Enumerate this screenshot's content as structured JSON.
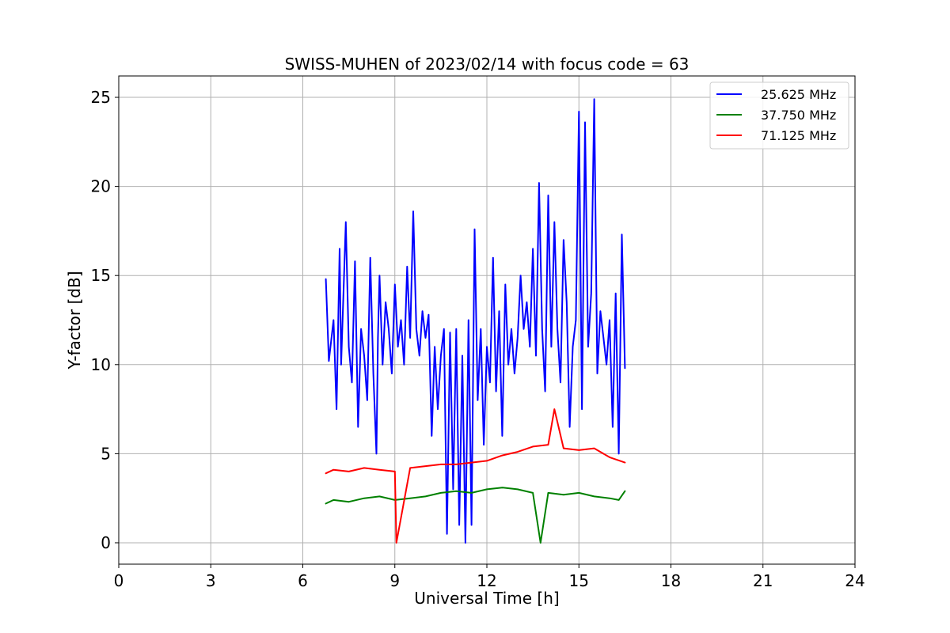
{
  "chart_data": {
    "type": "line",
    "title": "SWISS-MUHEN of 2023/02/14 with focus code = 63",
    "xlabel": "Universal Time [h]",
    "ylabel": "Y-factor [dB]",
    "xlim": [
      0,
      24
    ],
    "ylim": [
      -1.2,
      26.2
    ],
    "xticks": [
      0,
      3,
      6,
      9,
      12,
      15,
      18,
      21,
      24
    ],
    "yticks": [
      0,
      5,
      10,
      15,
      20,
      25
    ],
    "grid": true,
    "legend_position": "top-right",
    "series": [
      {
        "name": "25.625 MHz",
        "color": "#0000ff",
        "x": [
          6.75,
          6.85,
          7.0,
          7.1,
          7.2,
          7.25,
          7.4,
          7.5,
          7.6,
          7.7,
          7.8,
          7.9,
          8.0,
          8.1,
          8.2,
          8.3,
          8.4,
          8.45,
          8.5,
          8.6,
          8.7,
          8.8,
          8.9,
          9.0,
          9.1,
          9.2,
          9.3,
          9.4,
          9.5,
          9.6,
          9.7,
          9.8,
          9.9,
          10.0,
          10.1,
          10.2,
          10.3,
          10.4,
          10.5,
          10.6,
          10.7,
          10.8,
          10.9,
          11.0,
          11.1,
          11.2,
          11.3,
          11.4,
          11.5,
          11.6,
          11.7,
          11.8,
          11.9,
          12.0,
          12.1,
          12.2,
          12.3,
          12.4,
          12.5,
          12.6,
          12.7,
          12.8,
          12.9,
          13.0,
          13.1,
          13.2,
          13.3,
          13.4,
          13.5,
          13.6,
          13.7,
          13.8,
          13.9,
          14.0,
          14.1,
          14.2,
          14.3,
          14.4,
          14.5,
          14.6,
          14.7,
          14.8,
          14.9,
          15.0,
          15.1,
          15.2,
          15.3,
          15.4,
          15.5,
          15.6,
          15.7,
          15.8,
          15.9,
          16.0,
          16.1,
          16.2,
          16.3,
          16.4,
          16.5
        ],
        "values": [
          14.8,
          10.2,
          12.5,
          7.5,
          16.5,
          10.0,
          18.0,
          11.0,
          9.0,
          15.8,
          6.5,
          12.0,
          10.5,
          8.0,
          16.0,
          9.5,
          5.0,
          11.5,
          15.0,
          10.0,
          13.5,
          12.0,
          9.5,
          14.5,
          11.0,
          12.5,
          10.0,
          15.5,
          11.5,
          18.6,
          12.0,
          10.5,
          13.0,
          11.5,
          12.8,
          6.0,
          11.0,
          7.5,
          10.5,
          12.0,
          0.5,
          11.8,
          3.0,
          12.0,
          1.0,
          10.5,
          0.0,
          12.5,
          1.0,
          17.6,
          8.0,
          12.0,
          5.5,
          11.0,
          9.0,
          16.0,
          8.5,
          13.0,
          6.0,
          14.5,
          10.0,
          12.0,
          9.5,
          11.5,
          15.0,
          12.0,
          13.5,
          11.0,
          16.5,
          10.5,
          20.2,
          12.0,
          8.5,
          19.5,
          11.0,
          18.0,
          12.0,
          9.0,
          17.0,
          13.5,
          6.5,
          11.0,
          12.5,
          24.2,
          7.5,
          23.6,
          11.0,
          14.0,
          24.9,
          9.5,
          13.0,
          11.5,
          10.0,
          12.5,
          6.5,
          14.0,
          5.0,
          17.3,
          9.8
        ]
      },
      {
        "name": "37.750 MHz",
        "color": "#008000",
        "x": [
          6.75,
          7.0,
          7.5,
          8.0,
          8.5,
          9.0,
          9.5,
          10.0,
          10.5,
          11.0,
          11.5,
          12.0,
          12.5,
          13.0,
          13.5,
          13.75,
          14.0,
          14.5,
          15.0,
          15.5,
          16.0,
          16.3,
          16.5
        ],
        "values": [
          2.2,
          2.4,
          2.3,
          2.5,
          2.6,
          2.4,
          2.5,
          2.6,
          2.8,
          2.9,
          2.8,
          3.0,
          3.1,
          3.0,
          2.8,
          0.0,
          2.8,
          2.7,
          2.8,
          2.6,
          2.5,
          2.4,
          2.9
        ]
      },
      {
        "name": "71.125 MHz",
        "color": "#ff0000",
        "x": [
          6.75,
          7.0,
          7.5,
          8.0,
          8.5,
          9.0,
          9.05,
          9.5,
          10.0,
          10.5,
          11.0,
          11.5,
          12.0,
          12.5,
          13.0,
          13.5,
          14.0,
          14.2,
          14.5,
          15.0,
          15.5,
          16.0,
          16.5
        ],
        "values": [
          3.9,
          4.1,
          4.0,
          4.2,
          4.1,
          4.0,
          0.0,
          4.2,
          4.3,
          4.4,
          4.4,
          4.5,
          4.6,
          4.9,
          5.1,
          5.4,
          5.5,
          7.5,
          5.3,
          5.2,
          5.3,
          4.8,
          4.5
        ]
      }
    ]
  }
}
